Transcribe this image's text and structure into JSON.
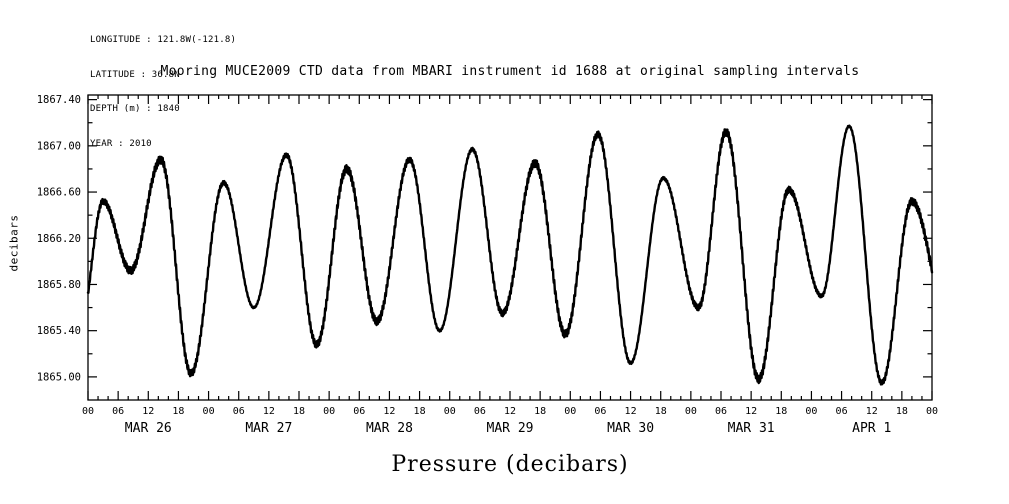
{
  "meta": {
    "longitude": "LONGITUDE : 121.8W(-121.8)",
    "latitude": "LATITUDE : 36.8N",
    "depth": "DEPTH (m) : 1840",
    "year": "YEAR : 2010"
  },
  "title": "Mooring MUCE2009 CTD data from MBARI instrument id 1688 at original sampling intervals",
  "ylabel": "decibars",
  "xlabel": "Pressure (decibars)",
  "chart_data": {
    "type": "line",
    "title": "Mooring MUCE2009 CTD data from MBARI instrument id 1688 at original sampling intervals",
    "ylabel": "decibars",
    "xlabel": "Pressure (decibars)",
    "x_unit": "hours since MAR 26 2010 00:00",
    "xlim": [
      0,
      168
    ],
    "ylim": [
      1864.8,
      1867.44
    ],
    "y_ticks": [
      1865.0,
      1865.4,
      1865.8,
      1866.2,
      1866.6,
      1867.0,
      1867.4
    ],
    "hour_labels": [
      "00",
      "06",
      "12",
      "18"
    ],
    "hour_tick_step": 6,
    "day_labels": [
      "MAR 26",
      "MAR 27",
      "MAR 28",
      "MAR 29",
      "MAR 30",
      "MAR 31",
      "APR 1"
    ],
    "grid": false,
    "legend": "none",
    "line_color": "#000000",
    "background_color": "#ffffff",
    "series": [
      {
        "name": "pressure",
        "units": "decibars",
        "representation": "tidal extremes [hour, decibars]; curve follows half-cosine interpolation between successive extremes",
        "extremes": [
          [
            -1.5,
            1865.45
          ],
          [
            3.0,
            1866.52
          ],
          [
            8.5,
            1865.92
          ],
          [
            14.5,
            1866.88
          ],
          [
            20.5,
            1865.03
          ],
          [
            27.0,
            1866.68
          ],
          [
            33.0,
            1865.6
          ],
          [
            39.5,
            1866.92
          ],
          [
            45.5,
            1865.28
          ],
          [
            51.5,
            1866.8
          ],
          [
            57.5,
            1865.48
          ],
          [
            64.0,
            1866.88
          ],
          [
            70.0,
            1865.4
          ],
          [
            76.5,
            1866.97
          ],
          [
            82.5,
            1865.55
          ],
          [
            89.0,
            1866.85
          ],
          [
            95.0,
            1865.37
          ],
          [
            101.5,
            1867.1
          ],
          [
            108.0,
            1865.12
          ],
          [
            114.5,
            1866.72
          ],
          [
            121.5,
            1865.6
          ],
          [
            127.0,
            1867.12
          ],
          [
            133.5,
            1864.98
          ],
          [
            139.5,
            1866.62
          ],
          [
            146.0,
            1865.7
          ],
          [
            151.5,
            1867.17
          ],
          [
            158.0,
            1864.95
          ],
          [
            164.0,
            1866.52
          ],
          [
            171.0,
            1865.55
          ]
        ]
      }
    ]
  }
}
